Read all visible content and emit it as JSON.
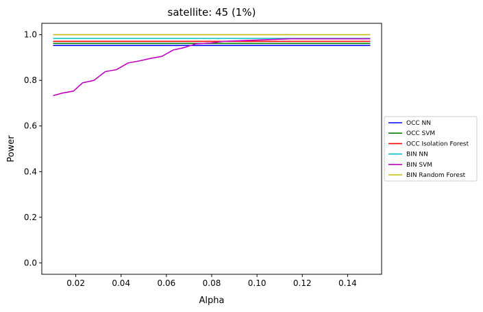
{
  "chart_data": {
    "type": "line",
    "title": "satellite: 45 (1%)",
    "xlabel": "Alpha",
    "ylabel": "Power",
    "xlim": [
      0.005,
      0.155
    ],
    "ylim": [
      -0.05,
      1.05
    ],
    "xticks": [
      0.02,
      0.04,
      0.06,
      0.08,
      0.1,
      0.12,
      0.14
    ],
    "xtick_labels": [
      "0.02",
      "0.04",
      "0.06",
      "0.08",
      "0.10",
      "0.12",
      "0.14"
    ],
    "yticks": [
      0.0,
      0.2,
      0.4,
      0.6,
      0.8,
      1.0
    ],
    "ytick_labels": [
      "0.0",
      "0.2",
      "0.4",
      "0.6",
      "0.8",
      "1.0"
    ],
    "grid": false,
    "legend_position": "center-right-outside",
    "x_range": [
      0.01,
      0.15
    ],
    "series": [
      {
        "name": "OCC NN",
        "color": "#0000ff",
        "constant": 0.953
      },
      {
        "name": "OCC SVM",
        "color": "#008000",
        "constant": 0.962
      },
      {
        "name": "OCC Isolation Forest",
        "color": "#ff0000",
        "constant": 0.971
      },
      {
        "name": "BIN NN",
        "color": "#00bfbf",
        "constant": 0.984
      },
      {
        "name": "BIN SVM",
        "color": "#bf00bf",
        "steps": [
          [
            0.01,
            0.733
          ],
          [
            0.014,
            0.744
          ],
          [
            0.019,
            0.753
          ],
          [
            0.023,
            0.789
          ],
          [
            0.028,
            0.8
          ],
          [
            0.033,
            0.838
          ],
          [
            0.038,
            0.847
          ],
          [
            0.043,
            0.876
          ],
          [
            0.048,
            0.885
          ],
          [
            0.053,
            0.896
          ],
          [
            0.058,
            0.905
          ],
          [
            0.063,
            0.933
          ],
          [
            0.068,
            0.944
          ],
          [
            0.073,
            0.96
          ],
          [
            0.08,
            0.964
          ],
          [
            0.085,
            0.971
          ],
          [
            0.115,
            0.982
          ],
          [
            0.15,
            0.982
          ]
        ]
      },
      {
        "name": "BIN Random Forest",
        "color": "#bfbf00",
        "constant": 1.0
      }
    ]
  }
}
